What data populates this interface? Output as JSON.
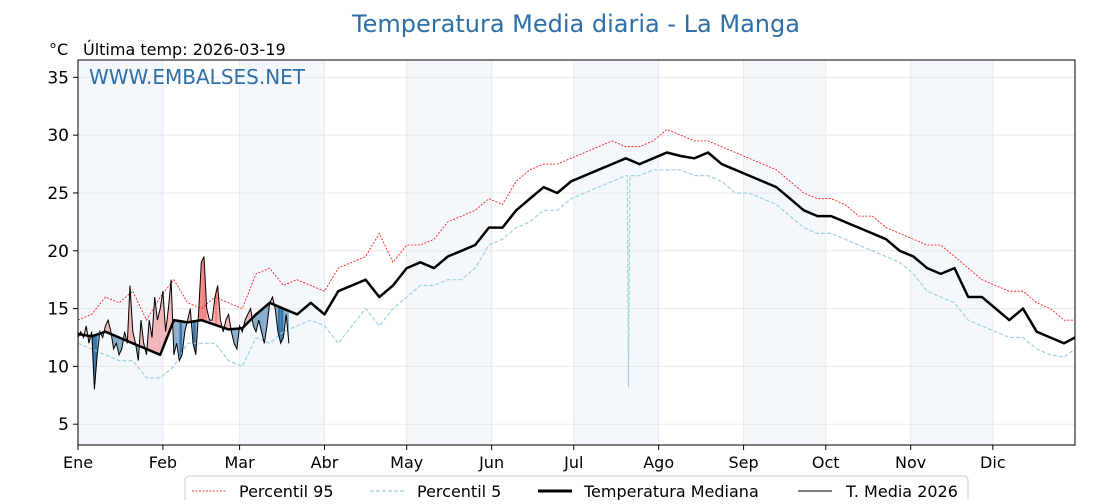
{
  "chart_data": {
    "type": "line",
    "title": "Temperatura Media diaria - La Manga",
    "ylabel": "°C",
    "subtitle": "Última temp: 2026-03-19",
    "watermark": "WWW.EMBALSES.NET",
    "ylim": [
      3.2,
      36.5
    ],
    "xlim_days": [
      0,
      364
    ],
    "yticks": [
      5,
      10,
      15,
      20,
      25,
      30,
      35
    ],
    "month_labels": [
      "Ene",
      "Feb",
      "Mar",
      "Abr",
      "May",
      "Jun",
      "Jul",
      "Ago",
      "Sep",
      "Oct",
      "Nov",
      "Dic"
    ],
    "month_start_days": [
      0,
      31,
      59,
      90,
      120,
      151,
      181,
      212,
      243,
      273,
      304,
      334
    ],
    "grid": true,
    "legend": {
      "placement": "bottom-center",
      "entries": [
        "Percentil 95",
        "Percentil 5",
        "Temperatura Mediana",
        "T. Media 2026"
      ]
    },
    "colors": {
      "p95": "#ff0000",
      "p5": "#9fd0e0",
      "median": "#000000",
      "current": "#000000",
      "above": "#f08080",
      "below": "#2c6ea3",
      "title": "#2e6fa7",
      "band": "#f4f8fc"
    },
    "climatology_step_days": 5,
    "climatology_days": [
      0,
      5,
      10,
      15,
      20,
      25,
      30,
      35,
      40,
      45,
      50,
      55,
      60,
      65,
      70,
      75,
      80,
      85,
      90,
      95,
      100,
      105,
      110,
      115,
      120,
      125,
      130,
      135,
      140,
      145,
      150,
      155,
      160,
      165,
      170,
      175,
      180,
      185,
      190,
      195,
      200,
      205,
      210,
      215,
      220,
      225,
      230,
      235,
      240,
      245,
      250,
      255,
      260,
      265,
      270,
      275,
      280,
      285,
      290,
      295,
      300,
      305,
      310,
      315,
      320,
      325,
      330,
      335,
      340,
      345,
      350,
      355,
      360,
      364
    ],
    "median": [
      12.8,
      12.6,
      13.0,
      12.5,
      12.0,
      11.5,
      11.0,
      14.0,
      13.8,
      14.0,
      13.6,
      13.2,
      13.3,
      14.5,
      15.5,
      15.0,
      14.5,
      15.5,
      14.5,
      16.5,
      17.0,
      17.5,
      16.0,
      17.0,
      18.5,
      19.0,
      18.5,
      19.5,
      20.0,
      20.5,
      22.0,
      22.0,
      23.5,
      24.5,
      25.5,
      25.0,
      26.0,
      26.5,
      27.0,
      27.5,
      28.0,
      27.5,
      28.0,
      28.5,
      28.2,
      28.0,
      28.5,
      27.5,
      27.0,
      26.5,
      26.0,
      25.5,
      24.5,
      23.5,
      23.0,
      23.0,
      22.5,
      22.0,
      21.5,
      21.0,
      20.0,
      19.5,
      18.5,
      18.0,
      18.5,
      16.0,
      16.0,
      15.0,
      14.0,
      15.0,
      13.0,
      12.5,
      12.0,
      12.5
    ],
    "p95": [
      14.0,
      14.5,
      16.0,
      15.5,
      16.5,
      14.0,
      16.0,
      17.5,
      15.5,
      15.0,
      16.0,
      15.5,
      15.0,
      18.0,
      18.5,
      17.0,
      17.5,
      17.0,
      16.5,
      18.5,
      19.0,
      19.5,
      21.5,
      19.0,
      20.5,
      20.5,
      21.0,
      22.5,
      23.0,
      23.5,
      24.5,
      24.0,
      26.0,
      27.0,
      27.5,
      27.5,
      28.0,
      28.5,
      29.0,
      29.5,
      29.0,
      29.0,
      29.5,
      30.5,
      30.0,
      29.5,
      29.5,
      29.0,
      28.5,
      28.0,
      27.5,
      27.0,
      26.0,
      25.0,
      24.5,
      24.5,
      24.0,
      23.0,
      23.0,
      22.0,
      21.5,
      21.0,
      20.5,
      20.5,
      19.5,
      18.5,
      17.5,
      17.0,
      16.5,
      16.5,
      15.5,
      15.0,
      14.0,
      14.0
    ],
    "p5": [
      12.0,
      11.5,
      11.0,
      10.5,
      10.5,
      9.0,
      9.0,
      10.0,
      12.0,
      12.0,
      12.0,
      10.5,
      10.0,
      12.5,
      12.0,
      13.0,
      13.5,
      14.0,
      13.5,
      12.0,
      13.5,
      15.0,
      13.5,
      15.0,
      16.0,
      17.0,
      17.0,
      17.5,
      17.5,
      18.5,
      20.5,
      21.0,
      22.0,
      22.5,
      23.5,
      23.5,
      24.5,
      25.0,
      25.5,
      26.0,
      26.5,
      26.5,
      27.0,
      27.0,
      27.0,
      26.5,
      26.5,
      26.0,
      25.0,
      25.0,
      24.5,
      24.0,
      23.0,
      22.0,
      21.5,
      21.5,
      21.0,
      20.5,
      20.0,
      19.5,
      19.0,
      18.0,
      16.5,
      16.0,
      15.5,
      14.0,
      13.5,
      13.0,
      12.5,
      12.5,
      11.5,
      11.0,
      10.8,
      11.5
    ],
    "p5_dip": {
      "day": 201,
      "value": 8.2
    },
    "current_year": 2026,
    "current_start_day": 0,
    "current": [
      12.5,
      13,
      12.5,
      13.5,
      12,
      13,
      8,
      11,
      13,
      12.5,
      13.5,
      14,
      13,
      11.5,
      12,
      11,
      11.5,
      13,
      12,
      17,
      13,
      12,
      10.5,
      14,
      12,
      11,
      14,
      12.5,
      16,
      14,
      15,
      16.5,
      13,
      15,
      17.5,
      11,
      12,
      10.5,
      11,
      13,
      14,
      15,
      12,
      11,
      14.5,
      19,
      19.5,
      15,
      14,
      14,
      16,
      17,
      14,
      13,
      14,
      14.5,
      13,
      12,
      11.5,
      13.5,
      13,
      14,
      14.5,
      15,
      13.5,
      13,
      14,
      13,
      12,
      13.5,
      15.5,
      16,
      15,
      13,
      12,
      12.5,
      14.5,
      12
    ]
  }
}
